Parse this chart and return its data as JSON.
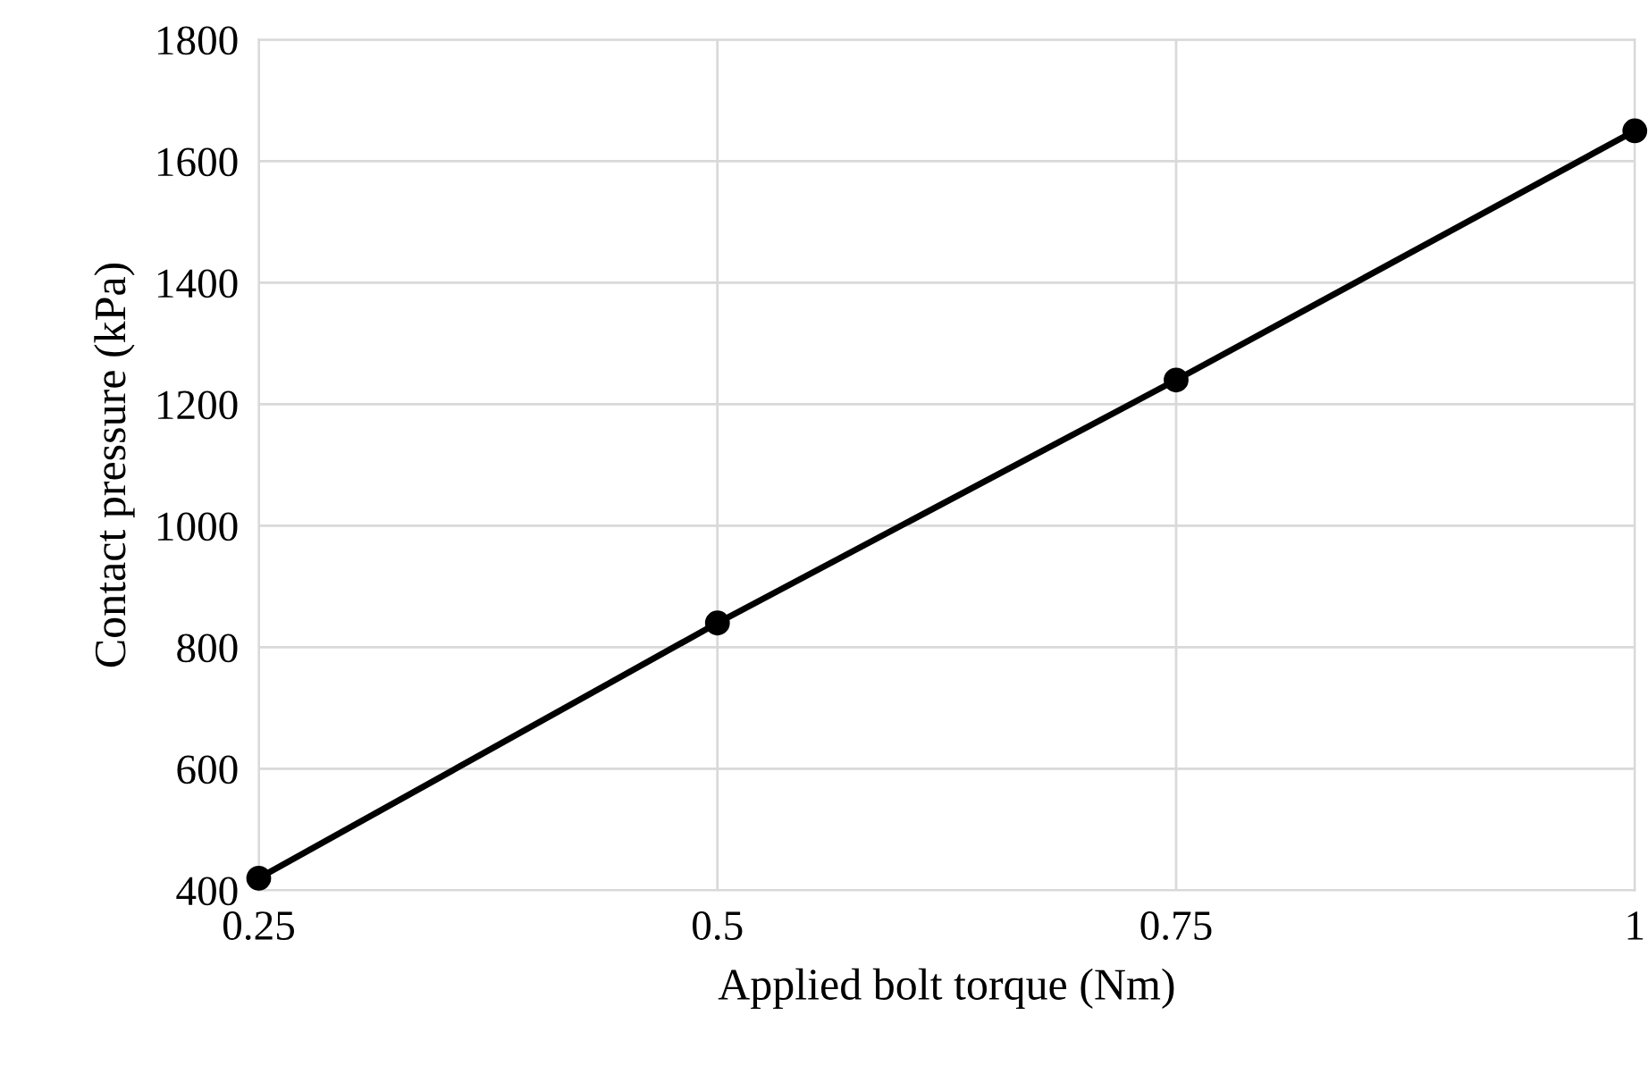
{
  "chart_data": {
    "type": "line",
    "xlabel": "Applied bolt torque (Nm)",
    "ylabel": "Contact pressure (kPa)",
    "x": [
      0.25,
      0.5,
      0.75,
      1
    ],
    "series": [
      {
        "color": "#000000",
        "values": [
          420,
          840,
          1240,
          1650
        ]
      }
    ],
    "xlim": [
      0.25,
      1
    ],
    "xticks": [
      0.25,
      0.5,
      0.75,
      1
    ],
    "ylim": [
      400,
      1800
    ],
    "yticks": [
      400,
      600,
      800,
      1000,
      1200,
      1400,
      1600,
      1800
    ],
    "grid": true,
    "marker": "circle",
    "line_style": "solid"
  }
}
